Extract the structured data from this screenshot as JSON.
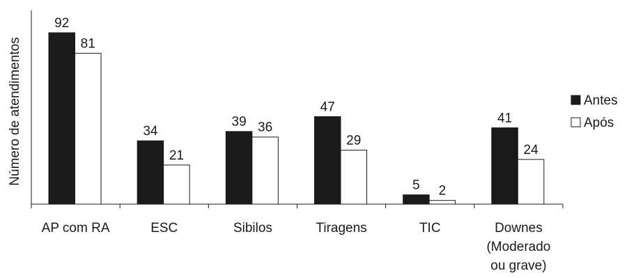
{
  "chart_data": {
    "type": "bar",
    "categories": [
      [
        "AP com RA"
      ],
      [
        "ESC"
      ],
      [
        "Sibilos"
      ],
      [
        "Tiragens"
      ],
      [
        "TIC"
      ],
      [
        "Downes",
        "(Moderado",
        "ou grave)"
      ]
    ],
    "series": [
      {
        "name": "Antes",
        "values": [
          92,
          34,
          39,
          47,
          5,
          41
        ],
        "color": "#1a1a1a"
      },
      {
        "name": "Após",
        "values": [
          81,
          21,
          36,
          29,
          2,
          24
        ],
        "color": "#ffffff"
      }
    ],
    "title": "",
    "xlabel": "",
    "ylabel": "Número de atendimentos",
    "ylim": [
      0,
      92
    ],
    "grid": false,
    "legend_position": "right",
    "data_labels": true
  }
}
